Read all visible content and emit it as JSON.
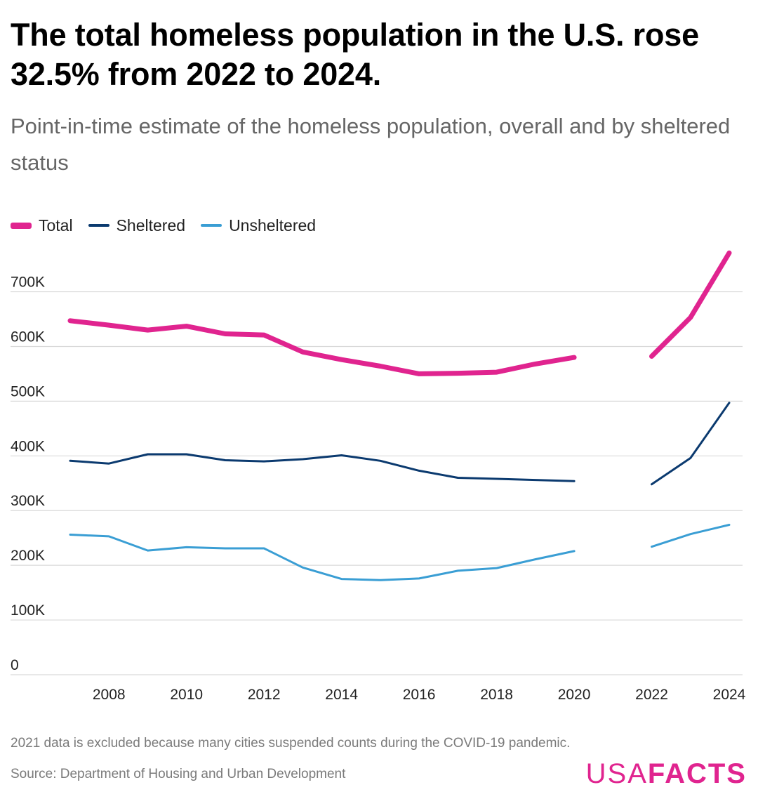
{
  "header": {
    "title": "The total homeless population in the U.S. rose 32.5% from 2022 to 2024.",
    "subtitle": "Point-in-time estimate of the homeless population, overall and by sheltered status"
  },
  "legend": [
    {
      "label": "Total",
      "color": "#e0248f"
    },
    {
      "label": "Sheltered",
      "color": "#0b3a6f"
    },
    {
      "label": "Unsheltered",
      "color": "#3a9ed4"
    }
  ],
  "footer": {
    "note": "2021 data is excluded because many cities suspended counts during the COVID-19 pandemic.",
    "source": "Source: Department of Housing and Urban Development",
    "logo_light": "USA",
    "logo_bold": "FACTS"
  },
  "chart_data": {
    "type": "line",
    "title": "The total homeless population in the U.S. rose 32.5% from 2022 to 2024.",
    "subtitle": "Point-in-time estimate of the homeless population, overall and by sheltered status",
    "xlabel": "",
    "ylabel": "",
    "xlim": [
      2007,
      2024
    ],
    "ylim": [
      0,
      770000
    ],
    "grid": true,
    "legend_position": "top-left",
    "x_ticks": [
      2008,
      2010,
      2012,
      2014,
      2016,
      2018,
      2020,
      2022,
      2024
    ],
    "x_tick_labels": [
      "2008",
      "2010",
      "2012",
      "2014",
      "2016",
      "2018",
      "2020",
      "2022",
      "2024"
    ],
    "y_ticks": [
      0,
      100000,
      200000,
      300000,
      400000,
      500000,
      600000,
      700000
    ],
    "y_tick_labels": [
      "0",
      "100K",
      "200K",
      "300K",
      "400K",
      "500K",
      "600K",
      "700K"
    ],
    "gap_year": 2021,
    "series": [
      {
        "name": "Total",
        "color": "#e0248f",
        "x": [
          2007,
          2008,
          2009,
          2010,
          2011,
          2012,
          2013,
          2014,
          2015,
          2016,
          2017,
          2018,
          2019,
          2020,
          2022,
          2023,
          2024
        ],
        "values": [
          647000,
          639000,
          630000,
          637000,
          623000,
          621000,
          590000,
          576000,
          564000,
          550000,
          551000,
          553000,
          568000,
          580000,
          582000,
          653000,
          771000
        ]
      },
      {
        "name": "Sheltered",
        "color": "#0b3a6f",
        "x": [
          2007,
          2008,
          2009,
          2010,
          2011,
          2012,
          2013,
          2014,
          2015,
          2016,
          2017,
          2018,
          2019,
          2020,
          2022,
          2023,
          2024
        ],
        "values": [
          391000,
          386000,
          403000,
          403000,
          392000,
          390000,
          394000,
          401000,
          391000,
          373000,
          360000,
          358000,
          356000,
          354000,
          348000,
          396000,
          497000
        ]
      },
      {
        "name": "Unsheltered",
        "color": "#3a9ed4",
        "x": [
          2007,
          2008,
          2009,
          2010,
          2011,
          2012,
          2013,
          2014,
          2015,
          2016,
          2017,
          2018,
          2019,
          2020,
          2022,
          2023,
          2024
        ],
        "values": [
          256000,
          253000,
          227000,
          233000,
          231000,
          231000,
          196000,
          175000,
          173000,
          176000,
          190000,
          195000,
          211000,
          226000,
          234000,
          257000,
          274000
        ]
      }
    ]
  }
}
